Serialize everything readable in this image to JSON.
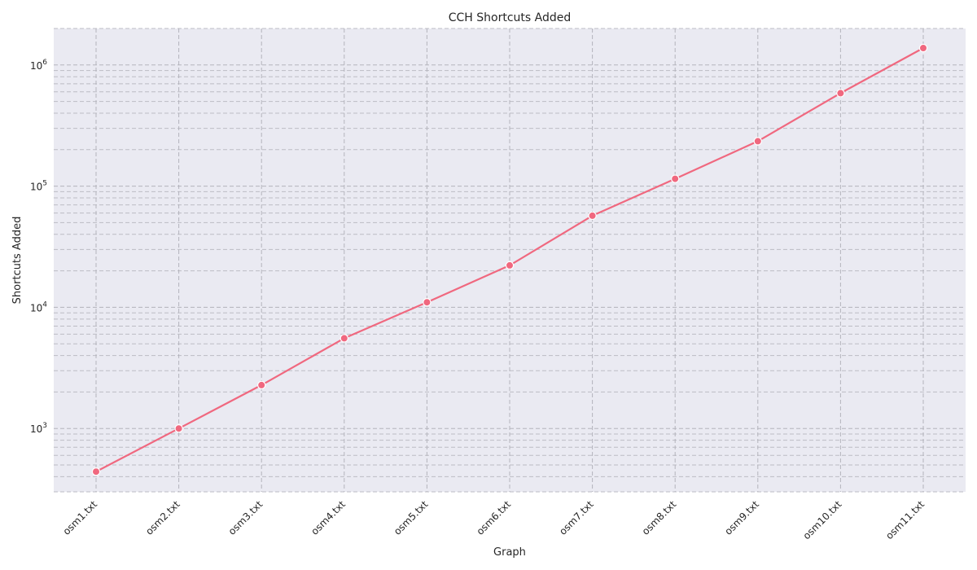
{
  "chart_data": {
    "type": "line",
    "title": "CCH Shortcuts Added",
    "xlabel": "Graph",
    "ylabel": "Shortcuts Added",
    "yscale": "log",
    "ylim": [
      300,
      2000000
    ],
    "yticks": [
      1000,
      10000,
      100000,
      1000000
    ],
    "ytick_labels": [
      {
        "base": "10",
        "exp": "3"
      },
      {
        "base": "10",
        "exp": "4"
      },
      {
        "base": "10",
        "exp": "5"
      },
      {
        "base": "10",
        "exp": "6"
      }
    ],
    "grid": true,
    "categories": [
      "osm1.txt",
      "osm2.txt",
      "osm3.txt",
      "osm4.txt",
      "osm5.txt",
      "osm6.txt",
      "osm7.txt",
      "osm8.txt",
      "osm9.txt",
      "osm10.txt",
      "osm11.txt"
    ],
    "series": [
      {
        "values": [
          440,
          1000,
          2280,
          5550,
          11000,
          22200,
          57000,
          115000,
          235000,
          585000,
          1380000
        ],
        "color": "#f0687f",
        "marker": "circle"
      }
    ],
    "background_color": "#eaeaf2"
  }
}
